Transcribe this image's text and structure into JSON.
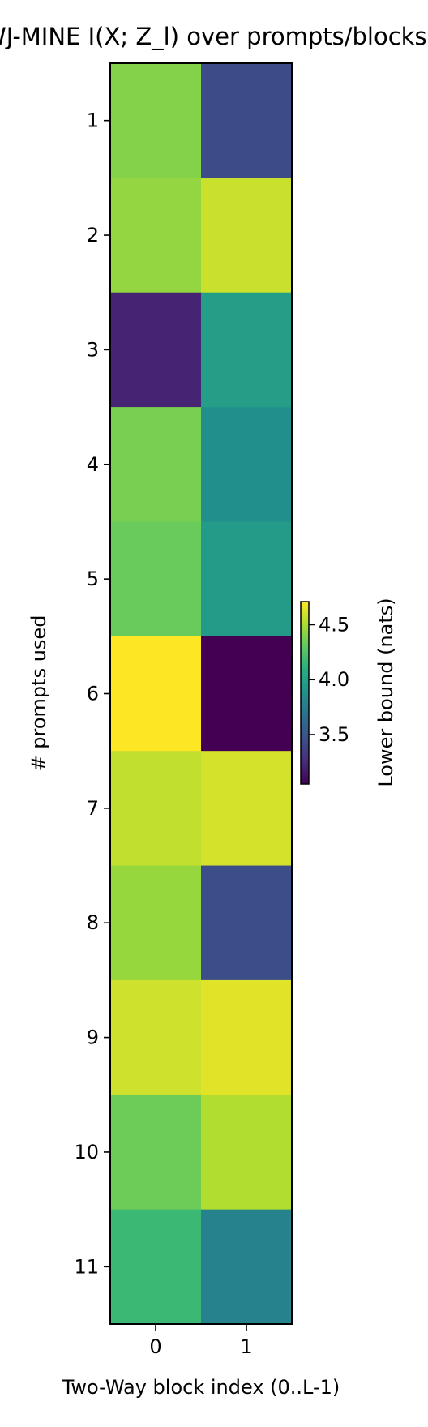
{
  "chart_data": {
    "type": "heatmap",
    "title": "NWJ-MINE  I(X; Z_l) over prompts/blocks",
    "xlabel": "Two-Way block index (0..L-1)",
    "ylabel": "# prompts used",
    "x_categories": [
      "0",
      "1"
    ],
    "y_categories": [
      "1",
      "2",
      "3",
      "4",
      "5",
      "6",
      "7",
      "8",
      "9",
      "10",
      "11"
    ],
    "values": [
      [
        4.4,
        3.43
      ],
      [
        4.44,
        4.58
      ],
      [
        3.22,
        3.98
      ],
      [
        4.37,
        3.88
      ],
      [
        4.33,
        3.96
      ],
      [
        4.71,
        3.05
      ],
      [
        4.56,
        4.61
      ],
      [
        4.45,
        3.45
      ],
      [
        4.59,
        4.64
      ],
      [
        4.34,
        4.52
      ],
      [
        4.17,
        3.79
      ]
    ],
    "colorscale": "viridis",
    "vmin": 3.05,
    "vmax": 4.71,
    "colorbar": {
      "label": "Lower bound (nats)",
      "ticks": [
        3.5,
        4.0,
        4.5
      ],
      "tick_labels": [
        "3.5",
        "4.0",
        "4.5"
      ]
    }
  }
}
